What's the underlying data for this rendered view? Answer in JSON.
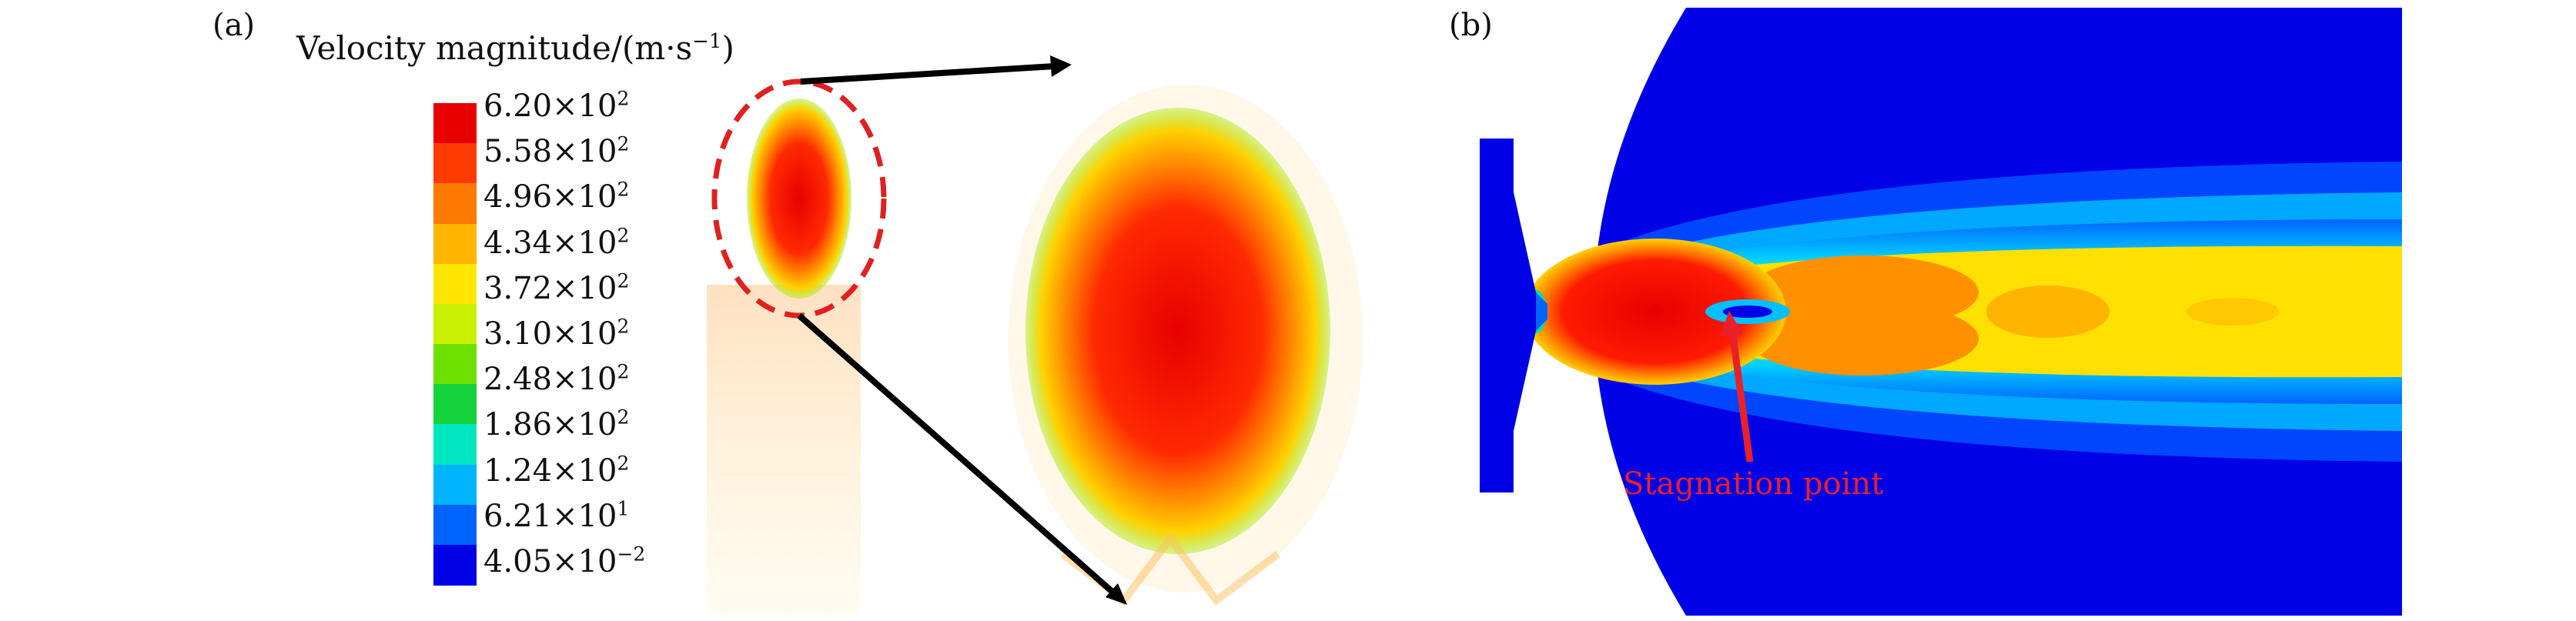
{
  "panels": {
    "a": {
      "label": "(a)"
    },
    "b": {
      "label": "(b)"
    }
  },
  "legend": {
    "title_prefix": "Velocity magnitude/(m·s",
    "title_exp": "−1",
    "title_suffix": ")",
    "ticks": [
      {
        "mantissa": "6.20×10",
        "exp": "2"
      },
      {
        "mantissa": "5.58×10",
        "exp": "2"
      },
      {
        "mantissa": "4.96×10",
        "exp": "2"
      },
      {
        "mantissa": "4.34×10",
        "exp": "2"
      },
      {
        "mantissa": "3.72×10",
        "exp": "2"
      },
      {
        "mantissa": "3.10×10",
        "exp": "2"
      },
      {
        "mantissa": "2.48×10",
        "exp": "2"
      },
      {
        "mantissa": "1.86×10",
        "exp": "2"
      },
      {
        "mantissa": "1.24×10",
        "exp": "2"
      },
      {
        "mantissa": "6.21×10",
        "exp": "1"
      },
      {
        "mantissa": "4.05×10",
        "exp": "−2"
      }
    ],
    "colors": [
      "#e80000",
      "#ff3a00",
      "#ff7a00",
      "#ffb400",
      "#ffe600",
      "#c8f000",
      "#6ee000",
      "#14d23c",
      "#00e6c0",
      "#00b4ff",
      "#0064ff",
      "#0000e6"
    ]
  },
  "annotation": {
    "label": "Stagnation point",
    "color": "#e8202a"
  }
}
